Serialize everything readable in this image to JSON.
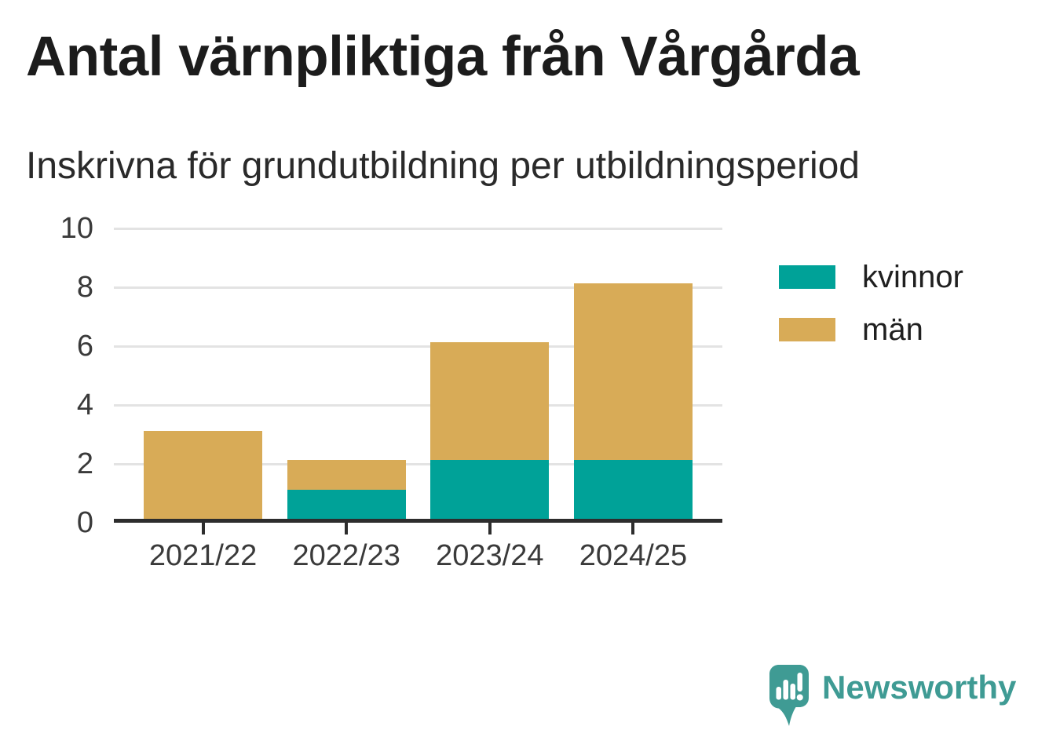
{
  "header": {
    "title": "Antal värnpliktiga från Vårgårda",
    "subtitle": "Inskrivna för grundutbildning per utbildningsperiod"
  },
  "chart_data": {
    "type": "bar",
    "stacked": true,
    "title": "Antal värnpliktiga från Vårgårda",
    "subtitle": "Inskrivna för grundutbildning per utbildningsperiod",
    "categories": [
      "2021/22",
      "2022/23",
      "2023/24",
      "2024/25"
    ],
    "series": [
      {
        "name": "kvinnor",
        "color": "#00a298",
        "values": [
          0,
          1,
          2,
          2
        ]
      },
      {
        "name": "män",
        "color": "#d8ab57",
        "values": [
          3,
          1,
          4,
          6
        ]
      }
    ],
    "stack_totals": [
      3,
      2,
      6,
      8
    ],
    "xlabel": "",
    "ylabel": "",
    "ylim": [
      0,
      10
    ],
    "yticks": [
      0,
      2,
      4,
      6,
      8,
      10
    ],
    "grid": true,
    "legend_position": "right"
  },
  "colors": {
    "kvinnor": "#00a298",
    "man": "#d8ab57",
    "grid": "#e3e3e3",
    "axis": "#2d2d2d",
    "brand": "#3f9b94"
  },
  "branding": {
    "wordmark": "Newsworthy",
    "icon": "speech-bubble-bar-chart"
  }
}
